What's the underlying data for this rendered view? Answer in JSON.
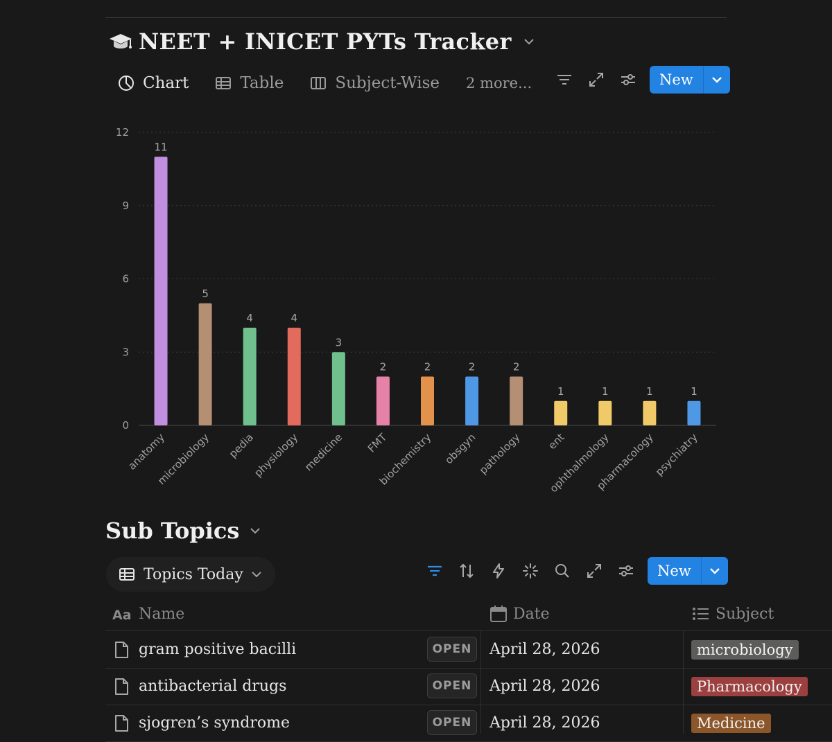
{
  "database": {
    "title": "NEET + INICET PYTs Tracker",
    "views": [
      {
        "label": "Chart",
        "icon": "pie-chart-icon",
        "active": true
      },
      {
        "label": "Table",
        "icon": "table-icon",
        "active": false
      },
      {
        "label": "Subject-Wise",
        "icon": "board-icon",
        "active": false
      }
    ],
    "more_views": "2 more...",
    "new_label": "New"
  },
  "chart_data": {
    "type": "bar",
    "categories": [
      "anatomy",
      "microbiology",
      "pedia",
      "physiology",
      "medicine",
      "FMT",
      "biochemistry",
      "obsgyn",
      "pathology",
      "ent",
      "ophthalmology",
      "pharmacology",
      "psychiatry"
    ],
    "values": [
      11,
      5,
      4,
      4,
      3,
      2,
      2,
      2,
      2,
      1,
      1,
      1,
      1
    ],
    "colors": [
      "#c18fe0",
      "#b58f73",
      "#6fc08d",
      "#e36b5e",
      "#6fc08d",
      "#e682a8",
      "#e3924b",
      "#4f98e6",
      "#b58f73",
      "#f0c968",
      "#f0c968",
      "#f0c968",
      "#4f98e6"
    ],
    "ylim": [
      0,
      12
    ],
    "yticks": [
      "0",
      "3",
      "6",
      "9",
      "12"
    ],
    "grid": true,
    "data_labels": true
  },
  "subtopics": {
    "title": "Sub Topics",
    "view_label": "Topics Today",
    "new_label": "New",
    "columns": {
      "name": "Name",
      "date": "Date",
      "subject": "Subject"
    },
    "open_label": "OPEN",
    "rows": [
      {
        "name": "gram positive bacilli",
        "date": "April 28, 2026",
        "subject": "microbiology",
        "subject_color": "#5c5c5a"
      },
      {
        "name": "antibacterial drugs",
        "date": "April 28, 2026",
        "subject": "Pharmacology",
        "subject_color": "#9c3f3f"
      },
      {
        "name": "sjogren’s syndrome",
        "date": "April 28, 2026",
        "subject": "Medicine",
        "subject_color": "#8b5629"
      }
    ]
  }
}
